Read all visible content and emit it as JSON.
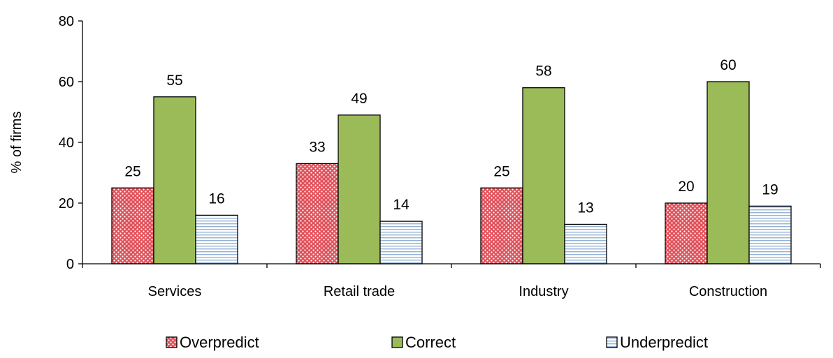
{
  "chart_data": {
    "type": "bar",
    "categories": [
      "Services",
      "Retail trade",
      "Industry",
      "Construction"
    ],
    "series": [
      {
        "name": "Overpredict",
        "values": [
          25,
          33,
          25,
          20
        ],
        "labels": [
          "25",
          "33",
          "25",
          "20"
        ],
        "color": "#e0505a",
        "pattern": "dotted"
      },
      {
        "name": "Correct",
        "values": [
          55,
          49,
          58,
          60
        ],
        "labels": [
          "55",
          "49",
          "58",
          "60"
        ],
        "color": "#9bbb59",
        "pattern": "solid"
      },
      {
        "name": "Underpredict",
        "values": [
          16,
          14,
          13,
          19
        ],
        "labels": [
          "16",
          "14",
          "13",
          "19"
        ],
        "color": "#95b3d7",
        "pattern": "horizontal-lines"
      }
    ],
    "ylabel": "% of firms",
    "ylim": [
      0,
      80
    ],
    "yticks": [
      "0",
      "20",
      "40",
      "60",
      "80"
    ],
    "grid": false,
    "legend": "bottom"
  }
}
